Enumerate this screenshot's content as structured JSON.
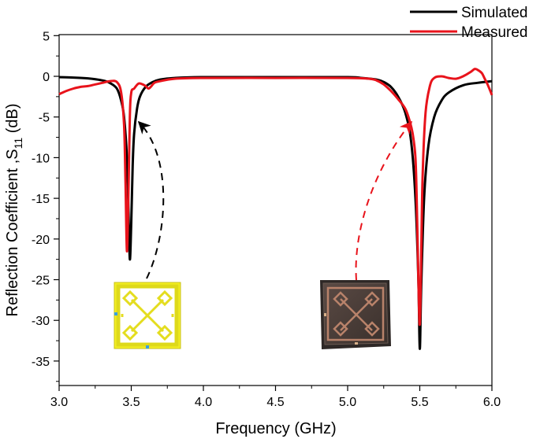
{
  "chart_data": {
    "type": "line",
    "title": "",
    "xlabel": "Frequency (GHz)",
    "ylabel_main": "Reflection Coefficient ,S",
    "ylabel_sub": "11",
    "ylabel_unit": " (dB)",
    "xlim": [
      3.0,
      6.0
    ],
    "ylim": [
      -38,
      5
    ],
    "x_ticks": [
      3.0,
      3.5,
      4.0,
      4.5,
      5.0,
      5.5,
      6.0
    ],
    "x_tick_labels": [
      "3.0",
      "3.5",
      "4.0",
      "4.5",
      "5.0",
      "5.5",
      "6.0"
    ],
    "y_ticks": [
      5,
      0,
      -5,
      -10,
      -15,
      -20,
      -25,
      -30,
      -35
    ],
    "y_tick_labels": [
      "5",
      "0",
      "-5",
      "-10",
      "-15",
      "-20",
      "-25",
      "-30",
      "-35"
    ],
    "grid": false,
    "legend_position": "top-right",
    "series": [
      {
        "name": "Simulated",
        "color": "#000000",
        "x": [
          3.0,
          3.1,
          3.2,
          3.3,
          3.35,
          3.4,
          3.43,
          3.45,
          3.47,
          3.48,
          3.49,
          3.5,
          3.51,
          3.52,
          3.54,
          3.56,
          3.6,
          3.65,
          3.7,
          3.8,
          4.0,
          4.5,
          5.0,
          5.1,
          5.2,
          5.25,
          5.3,
          5.35,
          5.4,
          5.44,
          5.47,
          5.49,
          5.5,
          5.51,
          5.53,
          5.56,
          5.6,
          5.65,
          5.7,
          5.8,
          5.9,
          6.0
        ],
        "y": [
          -0.1,
          -0.15,
          -0.25,
          -0.5,
          -0.8,
          -1.5,
          -3,
          -5,
          -10,
          -16,
          -22.5,
          -18,
          -11,
          -7,
          -4,
          -2.5,
          -1.3,
          -0.7,
          -0.4,
          -0.2,
          -0.1,
          -0.1,
          -0.1,
          -0.2,
          -0.4,
          -0.7,
          -1.3,
          -2.5,
          -4.5,
          -8,
          -15,
          -25,
          -33.5,
          -26,
          -15,
          -8.5,
          -5,
          -3,
          -2,
          -1.1,
          -0.8,
          -0.6
        ]
      },
      {
        "name": "Measured",
        "color": "#e8131b",
        "x": [
          3.0,
          3.05,
          3.1,
          3.15,
          3.2,
          3.25,
          3.3,
          3.35,
          3.4,
          3.43,
          3.45,
          3.46,
          3.47,
          3.48,
          3.49,
          3.5,
          3.52,
          3.55,
          3.58,
          3.6,
          3.62,
          3.64,
          3.66,
          3.7,
          3.8,
          4.0,
          4.5,
          5.0,
          5.15,
          5.2,
          5.25,
          5.3,
          5.35,
          5.4,
          5.43,
          5.45,
          5.47,
          5.48,
          5.49,
          5.5,
          5.51,
          5.52,
          5.54,
          5.57,
          5.6,
          5.65,
          5.7,
          5.75,
          5.8,
          5.85,
          5.88,
          5.9,
          5.93,
          5.95,
          5.97,
          6.0
        ],
        "y": [
          -2.2,
          -1.8,
          -1.5,
          -1.3,
          -1.2,
          -1.0,
          -0.8,
          -0.6,
          -0.7,
          -2,
          -6,
          -13,
          -21.5,
          -15,
          -5,
          -2,
          -1.5,
          -0.9,
          -1.0,
          -1.2,
          -1.5,
          -1.2,
          -0.8,
          -0.6,
          -0.3,
          -0.2,
          -0.2,
          -0.2,
          -0.3,
          -0.5,
          -1.0,
          -1.8,
          -2.8,
          -4,
          -5.5,
          -7,
          -10,
          -16,
          -25,
          -30.5,
          -22,
          -12,
          -4.5,
          -1.2,
          -0.2,
          0.0,
          -0.2,
          -0.3,
          0.0,
          0.5,
          0.9,
          0.8,
          0.4,
          -0.3,
          -1.0,
          -2.3
        ]
      }
    ],
    "annotations": [
      {
        "target": "simulated-dip-3.5GHz",
        "style": "dashed-arrow",
        "color": "#000000"
      },
      {
        "target": "measured-dip-5.5GHz",
        "style": "dashed-arrow",
        "color": "#e8131b"
      }
    ],
    "insets": [
      {
        "name": "antenna-layout-design",
        "description": "Yellow simulated antenna layout"
      },
      {
        "name": "fabricated-antenna-photo",
        "description": "Copper fabricated antenna photograph"
      }
    ]
  }
}
